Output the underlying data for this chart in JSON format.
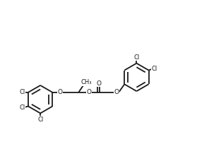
{
  "bg_color": "#ffffff",
  "line_color": "#1a1a1a",
  "line_width": 1.3,
  "font_size": 6.5,
  "figsize": [
    2.79,
    2.21
  ],
  "dpi": 100,
  "xlim": [
    0,
    10
  ],
  "ylim": [
    0,
    8
  ]
}
